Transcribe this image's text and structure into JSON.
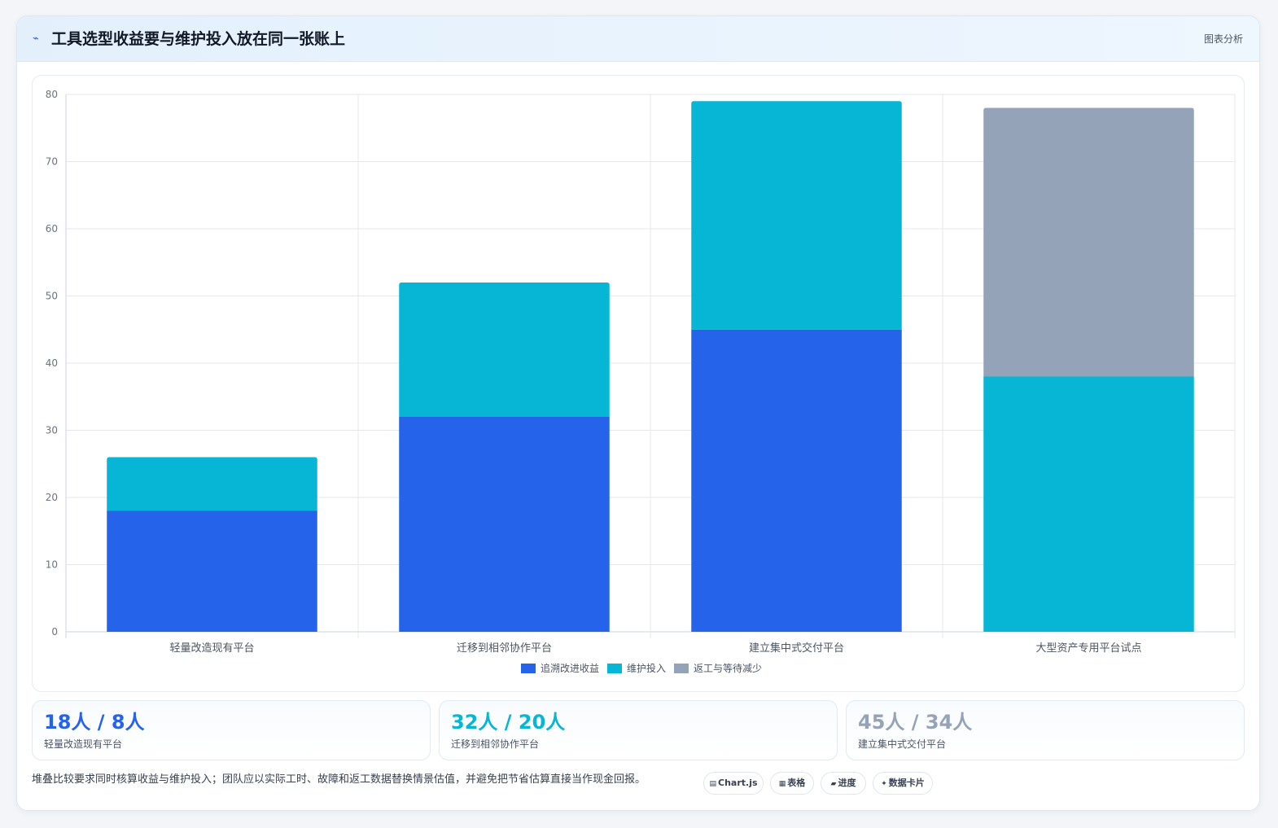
{
  "header": {
    "icon": "chart-line-icon",
    "title": "工具选型收益要与维护投入放在同一张账上",
    "tag": "图表分析"
  },
  "chart_data": {
    "type": "bar",
    "stacked": true,
    "categories": [
      "轻量改造现有平台",
      "迁移到相邻协作平台",
      "建立集中式交付平台",
      "大型资产专用平台试点"
    ],
    "series": [
      {
        "name": "追溯改进收益",
        "color": "#2563eb",
        "values": [
          18,
          32,
          45,
          0
        ]
      },
      {
        "name": "维护投入",
        "color": "#06b6d4",
        "values": [
          8,
          20,
          34,
          38
        ]
      },
      {
        "name": "返工与等待减少",
        "color": "#94a3b8",
        "values": [
          0,
          0,
          0,
          40
        ]
      }
    ],
    "ylim": [
      0,
      80
    ],
    "yticks": [
      0,
      10,
      20,
      30,
      40,
      50,
      60,
      70,
      80
    ],
    "grid": true,
    "legend": "bottom"
  },
  "stats": [
    {
      "value": "18人 / 8人",
      "label": "轻量改造现有平台",
      "color": "#2563eb"
    },
    {
      "value": "32人 / 20人",
      "label": "迁移到相邻协作平台",
      "color": "#06b6d4"
    },
    {
      "value": "45人 / 34人",
      "label": "建立集中式交付平台",
      "color": "#94a3b8"
    }
  ],
  "note": "堆叠比较要求同时核算收益与维护投入；团队应以实际工时、故障和返工数据替换情景估值，并避免把节省估算直接当作现金回报。",
  "pills": [
    {
      "icon": "▤",
      "label": "Chart.js"
    },
    {
      "icon": "▦",
      "label": "表格"
    },
    {
      "icon": "▰",
      "label": "进度"
    },
    {
      "icon": "✦",
      "label": "数据卡片"
    }
  ]
}
